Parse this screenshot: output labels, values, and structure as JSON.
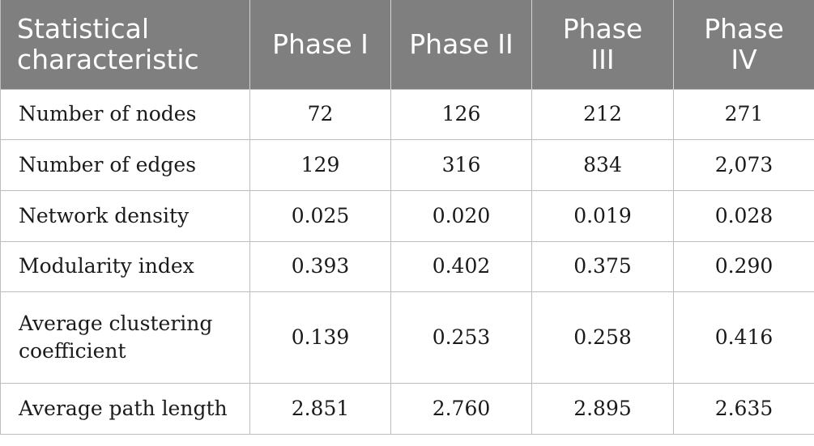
{
  "table": {
    "headers": [
      "Statistical characteristic",
      "Phase I",
      "Phase II",
      "Phase III",
      "Phase IV"
    ],
    "rows": [
      {
        "label": "Number of nodes",
        "values": [
          "72",
          "126",
          "212",
          "271"
        ]
      },
      {
        "label": "Number of edges",
        "values": [
          "129",
          "316",
          "834",
          "2,073"
        ]
      },
      {
        "label": "Network density",
        "values": [
          "0.025",
          "0.020",
          "0.019",
          "0.028"
        ]
      },
      {
        "label": "Modularity index",
        "values": [
          "0.393",
          "0.402",
          "0.375",
          "0.290"
        ]
      },
      {
        "label": "Average clustering coefficient",
        "values": [
          "0.139",
          "0.253",
          "0.258",
          "0.416"
        ]
      },
      {
        "label": "Average path length",
        "values": [
          "2.851",
          "2.760",
          "2.895",
          "2.635"
        ]
      }
    ],
    "colors": {
      "header_background": "#7f7f7f",
      "header_text": "#ffffff",
      "grid_line": "#bdbdbd",
      "body_text": "#1a1a1a"
    }
  }
}
